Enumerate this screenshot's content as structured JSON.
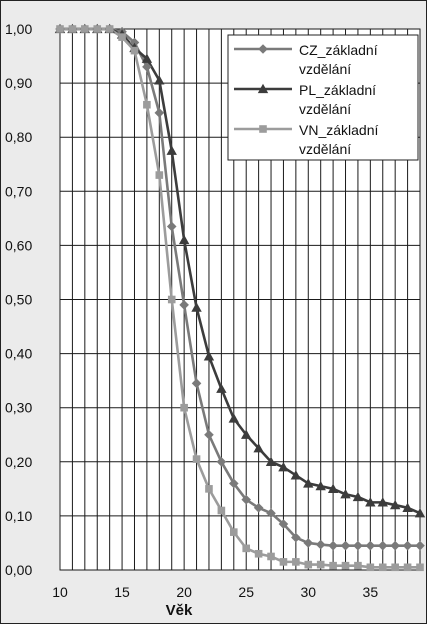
{
  "chart_data": {
    "type": "line",
    "xlabel": "Věk",
    "ylabel": "",
    "xlim": [
      10,
      39
    ],
    "ylim": [
      0,
      1.0
    ],
    "x_ticks": [
      "10",
      "15",
      "20",
      "25",
      "30",
      "35"
    ],
    "y_ticks": [
      "0,00",
      "0,10",
      "0,20",
      "0,30",
      "0,40",
      "0,50",
      "0,60",
      "0,70",
      "0,80",
      "0,90",
      "1,00"
    ],
    "grid": true,
    "legend_position": "top-right",
    "x": [
      10,
      11,
      12,
      13,
      14,
      15,
      16,
      17,
      18,
      19,
      20,
      21,
      22,
      23,
      24,
      25,
      26,
      27,
      28,
      29,
      30,
      31,
      32,
      33,
      34,
      35,
      36,
      37,
      38,
      39
    ],
    "series": [
      {
        "name": "CZ_základní vzdělání",
        "marker": "diamond",
        "color": "#7a7a7a",
        "values": [
          1.0,
          1.0,
          1.0,
          1.0,
          1.0,
          0.995,
          0.975,
          0.93,
          0.845,
          0.635,
          0.49,
          0.345,
          0.25,
          0.2,
          0.16,
          0.13,
          0.115,
          0.105,
          0.085,
          0.06,
          0.05,
          0.047,
          0.045,
          0.045,
          0.045,
          0.045,
          0.045,
          0.045,
          0.045,
          0.045
        ]
      },
      {
        "name": "PL_základní vzdělání",
        "marker": "triangle",
        "color": "#3c3c3c",
        "values": [
          1.0,
          1.0,
          1.0,
          1.0,
          1.0,
          0.99,
          0.965,
          0.945,
          0.905,
          0.775,
          0.61,
          0.485,
          0.395,
          0.335,
          0.28,
          0.25,
          0.225,
          0.2,
          0.19,
          0.175,
          0.16,
          0.155,
          0.15,
          0.14,
          0.135,
          0.125,
          0.125,
          0.12,
          0.115,
          0.105
        ]
      },
      {
        "name": "VN_základní vzdělání",
        "marker": "square",
        "color": "#9c9c9c",
        "values": [
          1.0,
          1.0,
          1.0,
          1.0,
          1.0,
          0.985,
          0.96,
          0.86,
          0.73,
          0.5,
          0.3,
          0.205,
          0.15,
          0.11,
          0.07,
          0.04,
          0.03,
          0.025,
          0.015,
          0.015,
          0.01,
          0.01,
          0.008,
          0.008,
          0.008,
          0.005,
          0.005,
          0.005,
          0.005,
          0.005
        ]
      }
    ]
  }
}
